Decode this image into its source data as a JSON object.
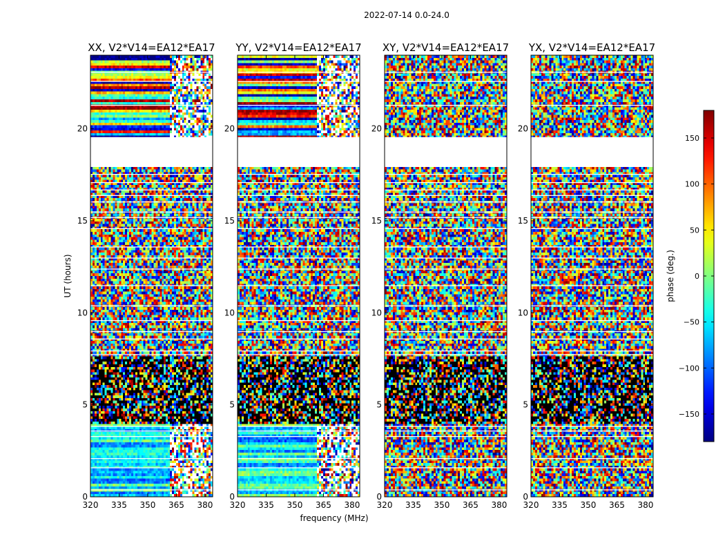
{
  "suptitle": "2022-07-14 0.0-24.0",
  "chart_data": {
    "type": "heatmap",
    "xlabel": "frequency (MHz)",
    "ylabel": "UT (hours)",
    "xlim": [
      320,
      384
    ],
    "ylim": [
      0,
      24
    ],
    "xticks": [
      320,
      335,
      350,
      365,
      380
    ],
    "yticks": [
      0,
      5,
      10,
      15,
      20
    ],
    "colorbar": {
      "label": "phase (deg.)",
      "range": [
        -180,
        180
      ],
      "ticks": [
        -150,
        -100,
        -50,
        0,
        50,
        100,
        150
      ],
      "tick_labels": [
        "−150",
        "−100",
        "−50",
        "0",
        "50",
        "100",
        "150"
      ],
      "colormap": "jet"
    },
    "panels": [
      {
        "title": "XX, V2*V14=EA12*EA17",
        "pol": "XX",
        "structured": true,
        "rfi_start_mhz": 361
      },
      {
        "title": "YY, V2*V14=EA12*EA17",
        "pol": "YY",
        "structured": true,
        "rfi_start_mhz": 361
      },
      {
        "title": "XY, V2*V14=EA12*EA17",
        "pol": "XY",
        "structured": false
      },
      {
        "title": "YX, V2*V14=EA12*EA17",
        "pol": "YX",
        "structured": false
      }
    ],
    "flagged_gap_ut": [
      17.95,
      19.55
    ],
    "dense_black_band_ut": [
      4.0,
      7.6
    ]
  }
}
